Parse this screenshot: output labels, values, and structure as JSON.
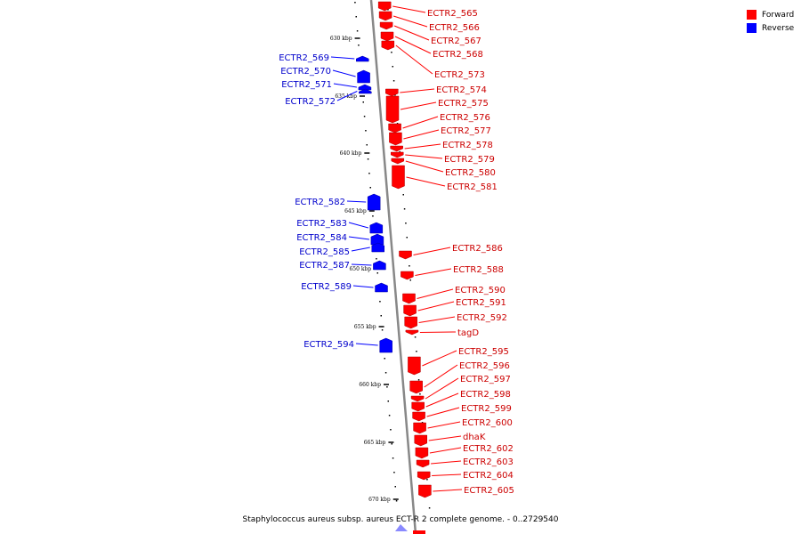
{
  "caption": "Staphylococcus aureus subsp. aureus ECT-R 2 complete genome. - 0..2729540",
  "legend": [
    {
      "label": "Forward",
      "color": "#ff0000"
    },
    {
      "label": "Reverse",
      "color": "#0000ff"
    }
  ],
  "colors": {
    "forward": "#ff0000",
    "reverse": "#0000ff",
    "forward_label": "#cc0000",
    "reverse_label": "#0000cc",
    "backbone": "#888888"
  },
  "ticks": [
    "630 kbp",
    "635 kbp",
    "640 kbp",
    "645 kbp",
    "650 kbp",
    "655 kbp",
    "660 kbp",
    "665 kbp",
    "670 kbp"
  ],
  "forward_genes": [
    "ECTR2_565",
    "ECTR2_566",
    "ECTR2_567",
    "ECTR2_568",
    "ECTR2_573",
    "ECTR2_574",
    "ECTR2_575",
    "ECTR2_576",
    "ECTR2_577",
    "ECTR2_578",
    "ECTR2_579",
    "ECTR2_580",
    "ECTR2_581",
    "ECTR2_586",
    "ECTR2_588",
    "ECTR2_590",
    "ECTR2_591",
    "ECTR2_592",
    "tagD",
    "ECTR2_595",
    "ECTR2_596",
    "ECTR2_597",
    "ECTR2_598",
    "ECTR2_599",
    "ECTR2_600",
    "dhaK",
    "ECTR2_602",
    "ECTR2_603",
    "ECTR2_604",
    "ECTR2_605"
  ],
  "reverse_genes": [
    "ECTR2_569",
    "ECTR2_570",
    "ECTR2_571",
    "ECTR2_572",
    "ECTR2_582",
    "ECTR2_583",
    "ECTR2_584",
    "ECTR2_585",
    "ECTR2_587",
    "ECTR2_589",
    "ECTR2_594"
  ]
}
